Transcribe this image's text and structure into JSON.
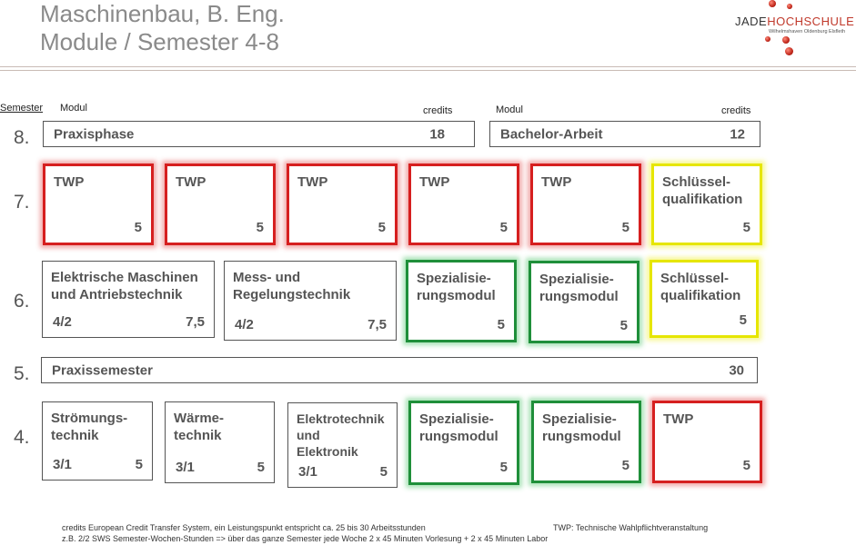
{
  "header": {
    "title_line1": "Maschinenbau, B. Eng.",
    "title_line2": "Module / Semester 4-8",
    "logo_jade": "JADE",
    "logo_hochschule": "HOCHSCHULE",
    "logo_subtitle": "Wilhelmshaven Oldenburg Elsfleth"
  },
  "table_headers": {
    "semester": "Semester",
    "modul_left": "Modul",
    "credits_left": "credits",
    "modul_right": "Modul",
    "credits_right": "credits"
  },
  "semesters": {
    "s8": "8.",
    "s7": "7.",
    "s6": "6.",
    "s5": "5.",
    "s4": "4."
  },
  "sem8": [
    {
      "name": "Praxisphase",
      "credits": "18"
    },
    {
      "name": "Bachelor-Arbeit",
      "credits": "12"
    }
  ],
  "sem7": [
    {
      "name": "TWP",
      "credits": "5"
    },
    {
      "name": "TWP",
      "credits": "5"
    },
    {
      "name": "TWP",
      "credits": "5"
    },
    {
      "name": "TWP",
      "credits": "5"
    },
    {
      "name": "TWP",
      "credits": "5"
    },
    {
      "name_l1": "Schlüssel-",
      "name_l2": "qualifikation",
      "credits": "5"
    }
  ],
  "sem6": [
    {
      "name_l1": "Elektrische Maschinen",
      "name_l2": "und Antriebstechnik",
      "sws": "4/2",
      "credits": "7,5"
    },
    {
      "name_l1": "Mess- und",
      "name_l2": "Regelungstechnik",
      "sws": "4/2",
      "credits": "7,5"
    },
    {
      "name_l1": "Spezialisie-",
      "name_l2": "rungsmodul",
      "credits": "5"
    },
    {
      "name_l1": "Spezialisie-",
      "name_l2": "rungsmodul",
      "credits": "5"
    },
    {
      "name_l1": "Schlüssel-",
      "name_l2": "qualifikation",
      "credits": "5"
    }
  ],
  "sem5": [
    {
      "name": "Praxissemester",
      "credits": "30"
    }
  ],
  "sem4": [
    {
      "name_l1": "Strömungs-",
      "name_l2": "technik",
      "sws": "3/1",
      "credits": "5"
    },
    {
      "name_l1": "Wärme-",
      "name_l2": "technik",
      "sws": "3/1",
      "credits": "5"
    },
    {
      "name_l1": "Elektrotechnik",
      "name_l2": "und",
      "name_l3": "Elektronik",
      "sws": "3/1",
      "credits": "5"
    },
    {
      "name_l1": "Spezialisie-",
      "name_l2": "rungsmodul",
      "credits": "5"
    },
    {
      "name_l1": "Spezialisie-",
      "name_l2": "rungsmodul",
      "credits": "5"
    },
    {
      "name": "TWP",
      "credits": "5"
    }
  ],
  "colors": {
    "twp": "#d61f1f",
    "schluesselqualifikation": "#e6e600",
    "spezialisierung": "#1f8f3a",
    "standard": "#555555"
  },
  "footer": {
    "line1": "credits European Credit Transfer System, ein Leistungspunkt entspricht ca. 25 bis 30 Arbeitsstunden",
    "line2": "z.B.  2/2 SWS Semester-Wochen-Stunden => über das ganze Semester jede Woche 2 x 45 Minuten Vorlesung + 2 x 45 Minuten Labor",
    "twp_note": "TWP: Technische Wahlpflichtveranstaltung"
  }
}
